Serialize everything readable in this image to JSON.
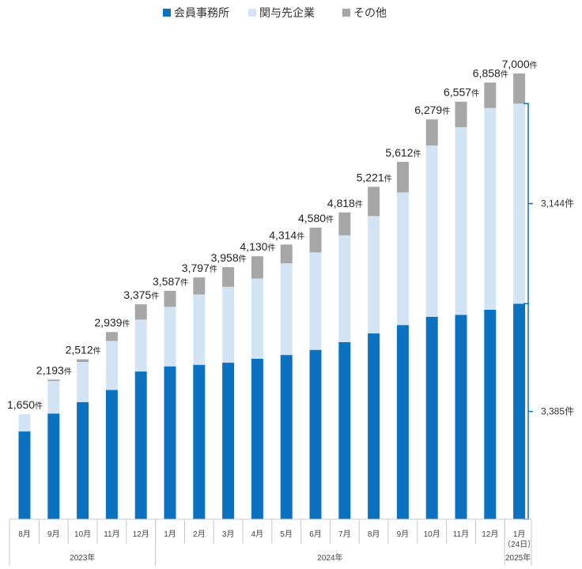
{
  "chart_data": {
    "type": "bar",
    "stacked": true,
    "categories": [
      "8月",
      "9月",
      "10月",
      "11月",
      "12月",
      "1月",
      "2月",
      "3月",
      "4月",
      "5月",
      "6月",
      "7月",
      "8月",
      "9月",
      "10月",
      "11月",
      "12月",
      "1月"
    ],
    "category_notes": [
      "",
      "",
      "",
      "",
      "",
      "",
      "",
      "",
      "",
      "",
      "",
      "",
      "",
      "",
      "",
      "",
      "",
      "（24日）"
    ],
    "years": [
      {
        "label": "2023年",
        "start": 0,
        "end": 4
      },
      {
        "label": "2024年",
        "start": 5,
        "end": 16
      },
      {
        "label": "2025年",
        "start": 17,
        "end": 17
      }
    ],
    "series": [
      {
        "name": "会員事務所",
        "color": "#0a72c1",
        "values": [
          1380,
          1660,
          1840,
          2030,
          2320,
          2400,
          2425,
          2460,
          2520,
          2580,
          2660,
          2780,
          2920,
          3050,
          3180,
          3210,
          3290,
          3385
        ]
      },
      {
        "name": "関与先企業",
        "color": "#d2e3f4",
        "values": [
          270,
          510,
          630,
          770,
          815,
          935,
          1105,
          1190,
          1260,
          1440,
          1530,
          1678,
          1841,
          2082,
          2689,
          2947,
          3168,
          3144
        ]
      },
      {
        "name": "その他",
        "color": "#a6a6a6",
        "values": [
          0,
          23,
          42,
          139,
          240,
          252,
          267,
          308,
          350,
          294,
          390,
          360,
          460,
          480,
          410,
          400,
          400,
          471
        ]
      }
    ],
    "totals": [
      "1,650",
      "2,193",
      "2,512",
      "2,939",
      "3,375",
      "3,587",
      "3,797",
      "3,958",
      "4,130",
      "4,314",
      "4,580",
      "4,818",
      "5,221",
      "5,612",
      "6,279",
      "6,557",
      "6,858",
      "7,000"
    ],
    "total_unit": "件",
    "brackets": [
      {
        "label": "3,144件",
        "series_index": 1,
        "category_index": 17
      },
      {
        "label": "3,385件",
        "series_index": 0,
        "category_index": 17
      }
    ],
    "ylim": [
      0,
      7000
    ],
    "title": "",
    "xlabel": "",
    "ylabel": "",
    "grid": false,
    "legend_position": "top-center"
  }
}
